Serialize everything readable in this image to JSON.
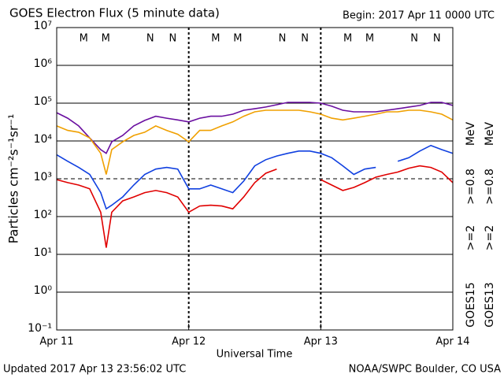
{
  "chart_data": {
    "type": "line",
    "title": "GOES Electron Flux (5 minute data)",
    "subtitle": "Begin: 2017 Apr 11 0000 UTC",
    "xlabel": "Universal Time",
    "ylabel": "Particles cm⁻²s⁻¹sr⁻¹",
    "footer_left": "Updated 2017 Apr 13 23:56:02 UTC",
    "footer_right": "NOAA/SWPC Boulder, CO USA",
    "log_y": true,
    "grid": true,
    "threshold": 1000,
    "xlim": [
      0,
      72
    ],
    "xticks": [
      {
        "value": 0,
        "label": "Apr 11"
      },
      {
        "value": 24,
        "label": "Apr 12"
      },
      {
        "value": 48,
        "label": "Apr 13"
      },
      {
        "value": 72,
        "label": "Apr 14"
      }
    ],
    "ylim": [
      0.1,
      10000000
    ],
    "yticks": [
      {
        "value": 0.1,
        "label": "10⁻¹"
      },
      {
        "value": 1,
        "label": "10⁰"
      },
      {
        "value": 10,
        "label": "10¹"
      },
      {
        "value": 100,
        "label": "10²"
      },
      {
        "value": 1000,
        "label": "10³"
      },
      {
        "value": 10000,
        "label": "10⁴"
      },
      {
        "value": 100000,
        "label": "10⁵"
      },
      {
        "value": 1000000,
        "label": "10⁶"
      },
      {
        "value": 10000000,
        "label": "10⁷"
      }
    ],
    "markers": [
      {
        "text": "M",
        "x": 4.9,
        "color": "#e00000"
      },
      {
        "text": "M",
        "x": 8.9,
        "color": "#2020c0"
      },
      {
        "text": "N",
        "x": 17,
        "color": "#e00000"
      },
      {
        "text": "N",
        "x": 21.1,
        "color": "#2020c0"
      },
      {
        "text": "M",
        "x": 28.9,
        "color": "#e00000"
      },
      {
        "text": "M",
        "x": 32.9,
        "color": "#2020c0"
      },
      {
        "text": "N",
        "x": 41,
        "color": "#e00000"
      },
      {
        "text": "N",
        "x": 45.1,
        "color": "#2020c0"
      },
      {
        "text": "M",
        "x": 52.9,
        "color": "#e00000"
      },
      {
        "text": "M",
        "x": 56.9,
        "color": "#2020c0"
      },
      {
        "text": "N",
        "x": 65,
        "color": "#e00000"
      },
      {
        "text": "N",
        "x": 69.1,
        "color": "#2020c0"
      }
    ],
    "legend": [
      {
        "satellite": "GOES15",
        "unit": "MeV"
      },
      {
        "satellite": "GOES13",
        "unit": "MeV"
      }
    ],
    "x": [
      0,
      2,
      4,
      6,
      8,
      9,
      10,
      12,
      14,
      16,
      18,
      20,
      22,
      24,
      26,
      28,
      30,
      32,
      34,
      36,
      38,
      40,
      42,
      44,
      46,
      48,
      50,
      52,
      54,
      56,
      58,
      60,
      62,
      64,
      66,
      68,
      70,
      72
    ],
    "series": [
      {
        "name": ">=0.8",
        "legend_group": 0,
        "color": "#6a0fa0",
        "values": [
          56000,
          40000,
          25000,
          12000,
          5900,
          4700,
          9500,
          14000,
          25000,
          35000,
          45000,
          40000,
          36000,
          32000,
          40000,
          45000,
          45000,
          51000,
          65000,
          71000,
          79000,
          91000,
          105000,
          105000,
          105000,
          100000,
          83000,
          65000,
          59000,
          59000,
          59000,
          65000,
          71000,
          79000,
          87000,
          105000,
          105000,
          87000
        ]
      },
      {
        "name": ">=2",
        "legend_group": 0,
        "color": "#1040e0",
        "values": [
          4300,
          2900,
          2000,
          1300,
          430,
          160,
          200,
          330,
          680,
          1300,
          1800,
          2000,
          1800,
          540,
          540,
          680,
          540,
          430,
          870,
          2200,
          3200,
          4000,
          4700,
          5400,
          5400,
          4700,
          3600,
          2200,
          1300,
          1800,
          2000,
          null,
          2900,
          3600,
          5400,
          7600,
          5900,
          4700
        ]
      },
      {
        "name": ">=0.8",
        "legend_group": 1,
        "color": "#f0a000",
        "values": [
          25000,
          19000,
          17000,
          12000,
          4700,
          1300,
          5900,
          9500,
          14000,
          17000,
          25000,
          19000,
          15000,
          9500,
          19000,
          19000,
          25000,
          32000,
          45000,
          59000,
          65000,
          65000,
          65000,
          65000,
          59000,
          51000,
          40000,
          36000,
          40000,
          45000,
          51000,
          59000,
          59000,
          65000,
          65000,
          59000,
          51000,
          36000
        ]
      },
      {
        "name": ">=2",
        "legend_group": 1,
        "color": "#e00000",
        "values": [
          950,
          790,
          680,
          540,
          130,
          15,
          130,
          260,
          330,
          430,
          490,
          430,
          330,
          130,
          190,
          200,
          190,
          160,
          330,
          790,
          1400,
          1800,
          null,
          null,
          null,
          950,
          680,
          490,
          590,
          790,
          1100,
          1300,
          1500,
          1900,
          2200,
          2000,
          1500,
          790
        ]
      }
    ]
  }
}
